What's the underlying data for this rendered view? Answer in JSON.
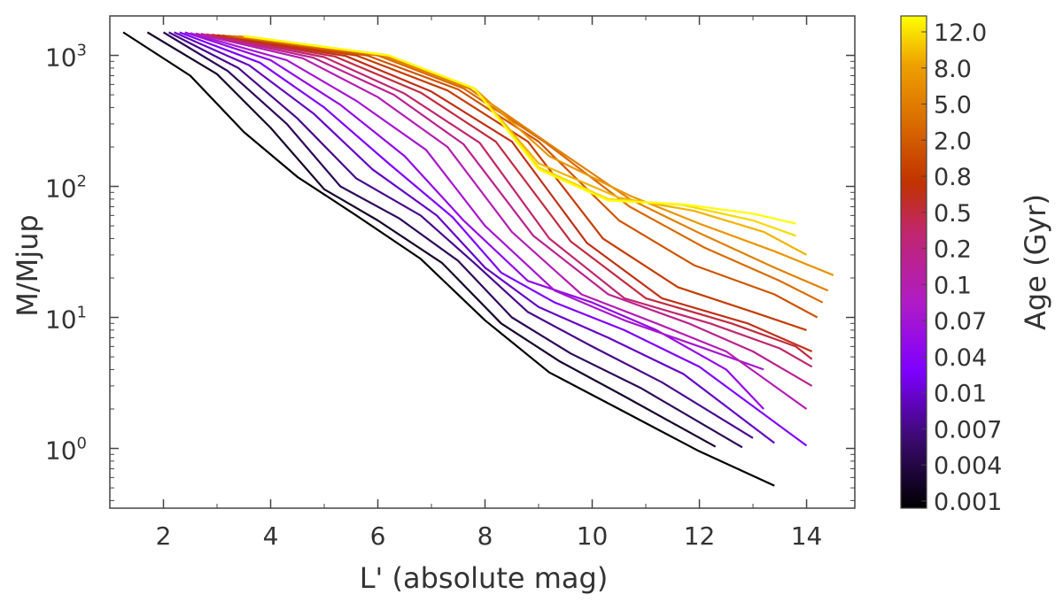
{
  "chart_data": {
    "type": "line",
    "title": "",
    "xlabel": "L' (absolute mag)",
    "ylabel": "M/Mjup",
    "xlim": [
      1.0,
      14.9
    ],
    "ylim": [
      0.35,
      2000
    ],
    "yscale": "log",
    "x_ticks": [
      2,
      4,
      6,
      8,
      10,
      12,
      14
    ],
    "y_ticks": [
      {
        "value": 1,
        "base": "10",
        "exp": "0"
      },
      {
        "value": 10,
        "base": "10",
        "exp": "1"
      },
      {
        "value": 100,
        "base": "10",
        "exp": "2"
      },
      {
        "value": 1000,
        "base": "10",
        "exp": "3"
      }
    ],
    "colorbar": {
      "label": "Age (Gyr)",
      "ticks": [
        "12.0",
        "8.0",
        "5.0",
        "2.0",
        "0.8",
        "0.5",
        "0.2",
        "0.1",
        "0.07",
        "0.04",
        "0.01",
        "0.007",
        "0.004",
        "0.001"
      ],
      "colormap": [
        "#000000",
        "#3a0a6e",
        "#7f00ff",
        "#b01cc4",
        "#c1266e",
        "#c03200",
        "#d96a00",
        "#eea000",
        "#ffff00"
      ]
    },
    "series": [
      {
        "name": "0.001",
        "x": [
          1.25,
          2.5,
          3.5,
          4.5,
          5.6,
          6.8,
          8.0,
          9.2,
          10.5,
          12.0,
          13.4
        ],
        "y": [
          1500,
          700,
          260,
          118,
          60,
          28,
          9.5,
          3.8,
          2.0,
          0.95,
          0.52
        ]
      },
      {
        "name": "0.002",
        "x": [
          1.7,
          3.0,
          4.0,
          5.0,
          6.0,
          7.2,
          8.3,
          9.4,
          10.6,
          12.3
        ],
        "y": [
          1500,
          720,
          280,
          95,
          55,
          26,
          9.0,
          4.6,
          2.5,
          1.03
        ]
      },
      {
        "name": "0.003",
        "x": [
          2.0,
          3.2,
          4.3,
          5.3,
          6.4,
          7.5,
          8.5,
          9.6,
          10.9,
          12.8
        ],
        "y": [
          1500,
          760,
          300,
          100,
          57,
          27,
          10.0,
          5.3,
          2.9,
          1.02
        ]
      },
      {
        "name": "0.004",
        "x": [
          2.1,
          3.4,
          4.5,
          5.6,
          6.8,
          7.8,
          8.8,
          10.0,
          11.3,
          13.0
        ],
        "y": [
          1500,
          800,
          330,
          115,
          60,
          26,
          11.0,
          6.0,
          3.2,
          1.2
        ]
      },
      {
        "name": "0.005",
        "x": [
          2.2,
          3.6,
          4.8,
          5.9,
          7.1,
          8.0,
          9.0,
          10.3,
          11.7,
          13.4
        ],
        "y": [
          1500,
          840,
          360,
          135,
          60,
          24,
          12.0,
          7.0,
          3.7,
          1.1
        ]
      },
      {
        "name": "0.007",
        "x": [
          2.3,
          3.8,
          5.0,
          6.2,
          7.4,
          8.3,
          9.3,
          10.6,
          12.0,
          14.0
        ],
        "y": [
          1500,
          880,
          400,
          150,
          58,
          22,
          13.0,
          8.0,
          4.2,
          1.05
        ]
      },
      {
        "name": "0.01",
        "x": [
          2.4,
          4.0,
          5.3,
          6.5,
          7.6,
          8.8,
          10.0,
          11.2,
          12.5,
          13.2
        ],
        "y": [
          1500,
          920,
          420,
          170,
          55,
          19,
          13.0,
          8.0,
          4.0,
          2.0
        ]
      },
      {
        "name": "0.02",
        "x": [
          2.5,
          4.3,
          5.6,
          6.9,
          8.0,
          9.3,
          10.6,
          12.0,
          13.2
        ],
        "y": [
          1480,
          920,
          450,
          190,
          50,
          16,
          9.5,
          6.0,
          4.0
        ]
      },
      {
        "name": "0.03",
        "x": [
          2.6,
          4.6,
          6.0,
          7.3,
          8.5,
          9.8,
          11.2,
          12.5,
          14.0
        ],
        "y": [
          1470,
          950,
          480,
          200,
          45,
          15,
          9.0,
          5.5,
          2.0
        ]
      },
      {
        "name": "0.04",
        "x": [
          2.7,
          4.8,
          6.3,
          7.6,
          8.9,
          10.3,
          11.8,
          13.0,
          14.1
        ],
        "y": [
          1460,
          960,
          500,
          210,
          42,
          15,
          9.0,
          5.5,
          3.0
        ]
      },
      {
        "name": "0.05",
        "x": [
          2.8,
          5.0,
          6.5,
          7.9,
          9.2,
          10.6,
          12.2,
          13.5,
          14.1
        ],
        "y": [
          1450,
          970,
          510,
          215,
          40,
          14,
          9.0,
          5.8,
          4.2
        ]
      },
      {
        "name": "0.07",
        "x": [
          2.9,
          5.2,
          6.8,
          8.2,
          9.6,
          11.0,
          12.6,
          13.8,
          14.1
        ],
        "y": [
          1440,
          980,
          520,
          220,
          38,
          14,
          9.0,
          6.0,
          4.8
        ]
      },
      {
        "name": "0.1",
        "x": [
          3.0,
          5.4,
          7.0,
          8.5,
          9.9,
          11.3,
          12.9,
          14.1
        ],
        "y": [
          1430,
          990,
          530,
          220,
          37,
          14,
          9.0,
          5.5
        ]
      },
      {
        "name": "0.2",
        "x": [
          3.1,
          5.6,
          7.3,
          8.8,
          10.2,
          11.6,
          13.0,
          14.0
        ],
        "y": [
          1420,
          1000,
          540,
          220,
          40,
          17,
          11.0,
          8.0
        ]
      },
      {
        "name": "0.3",
        "x": [
          3.2,
          5.8,
          7.5,
          9.0,
          10.5,
          11.9,
          13.4,
          14.2
        ],
        "y": [
          1410,
          1000,
          550,
          220,
          55,
          25,
          15.0,
          10.0
        ]
      },
      {
        "name": "0.5",
        "x": [
          3.3,
          6.0,
          7.6,
          9.1,
          10.7,
          12.1,
          13.5,
          14.3
        ],
        "y": [
          1400,
          1000,
          560,
          220,
          70,
          34,
          19.0,
          13.0
        ]
      },
      {
        "name": "0.8",
        "x": [
          3.4,
          6.1,
          7.7,
          9.2,
          10.7,
          12.0,
          13.4,
          14.4
        ],
        "y": [
          1400,
          1000,
          560,
          210,
          80,
          44,
          24.0,
          16.0
        ]
      },
      {
        "name": "2.0",
        "x": [
          3.5,
          6.2,
          7.8,
          9.2,
          10.7,
          12.0,
          13.4,
          14.5
        ],
        "y": [
          1400,
          1000,
          560,
          170,
          85,
          52,
          32.0,
          21.0
        ]
      },
      {
        "name": "5.0",
        "x": [
          3.5,
          6.2,
          7.8,
          9.0,
          10.5,
          11.9,
          13.2,
          14.0
        ],
        "y": [
          1400,
          1000,
          560,
          150,
          82,
          65,
          45.0,
          30.0
        ]
      },
      {
        "name": "8.0",
        "x": [
          3.5,
          6.2,
          7.8,
          9.0,
          10.3,
          11.7,
          13.0,
          13.8
        ],
        "y": [
          1400,
          1000,
          560,
          140,
          80,
          72,
          55.0,
          42.0
        ]
      },
      {
        "name": "12.0",
        "x": [
          3.5,
          6.2,
          7.8,
          9.0,
          10.3,
          11.7,
          13.0,
          13.8
        ],
        "y": [
          1400,
          1000,
          560,
          135,
          78,
          73,
          62.0,
          52.0
        ]
      }
    ]
  }
}
